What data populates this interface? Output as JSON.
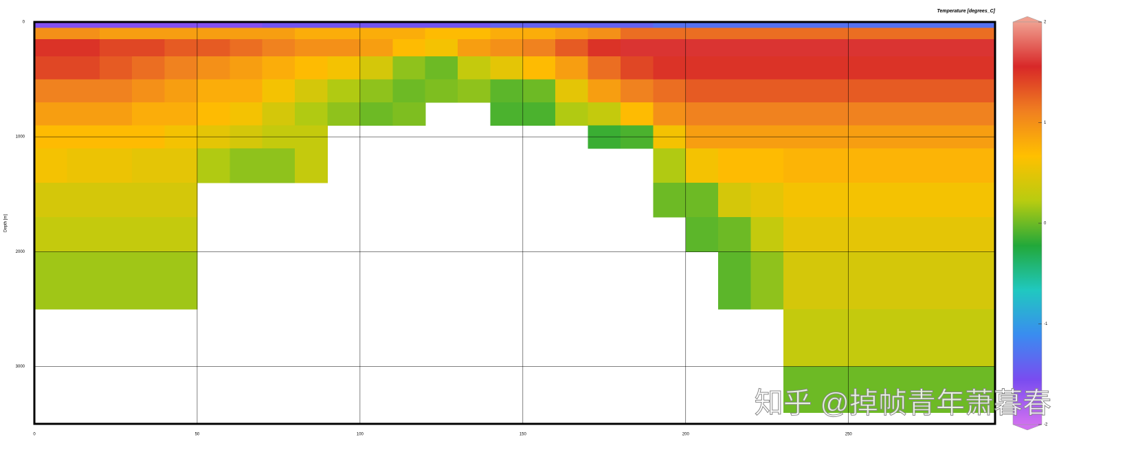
{
  "chart_data": {
    "type": "section",
    "colorbar_title": "Temperature [degrees_C]",
    "ylabel": "Depth [m]",
    "watermark": "知乎 @掉帧青年萧暮春",
    "xlim": [
      0,
      295
    ],
    "ylim": [
      3500,
      0
    ],
    "xticks": [
      0,
      50,
      100,
      150,
      200,
      250
    ],
    "yticks": [
      0,
      1000,
      2000,
      3000
    ],
    "grid": true,
    "x_edges": [
      0,
      10,
      20,
      30,
      40,
      50,
      60,
      70,
      80,
      90,
      100,
      110,
      120,
      130,
      140,
      150,
      160,
      170,
      180,
      190,
      200,
      210,
      220,
      230,
      240,
      250,
      260,
      270,
      280,
      290,
      295
    ],
    "depth_edges": [
      0,
      50,
      150,
      300,
      500,
      700,
      900,
      1100,
      1400,
      1700,
      2000,
      2500,
      3000,
      3400
    ],
    "values": [
      [
        -1.6,
        1.0,
        1.5,
        1.4,
        1.1,
        0.9,
        0.7,
        0.6,
        0.4,
        0.3,
        0.15,
        null,
        null
      ],
      [
        -1.6,
        1.0,
        1.5,
        1.4,
        1.1,
        0.9,
        0.7,
        0.55,
        0.4,
        0.3,
        0.15,
        null,
        null
      ],
      [
        -1.6,
        0.9,
        1.4,
        1.3,
        1.1,
        0.9,
        0.7,
        0.55,
        0.4,
        0.3,
        0.15,
        null,
        null
      ],
      [
        -1.6,
        0.9,
        1.4,
        1.2,
        1.0,
        0.8,
        0.7,
        0.5,
        0.4,
        0.3,
        0.15,
        null,
        null
      ],
      [
        -1.6,
        0.9,
        1.3,
        1.1,
        0.9,
        0.8,
        0.6,
        0.5,
        0.4,
        0.3,
        0.15,
        null,
        null
      ],
      [
        -1.6,
        0.9,
        1.3,
        1.0,
        0.8,
        0.7,
        0.5,
        0.2,
        null,
        null,
        null,
        null,
        null
      ],
      [
        -1.6,
        0.9,
        1.2,
        0.9,
        0.8,
        0.6,
        0.4,
        0.1,
        null,
        null,
        null,
        null,
        null
      ],
      [
        -1.5,
        0.9,
        1.1,
        0.8,
        0.6,
        0.4,
        0.3,
        0.1,
        null,
        null,
        null,
        null,
        null
      ],
      [
        -1.5,
        0.8,
        1.0,
        0.7,
        0.4,
        0.2,
        0.3,
        0.3,
        null,
        null,
        null,
        null,
        null
      ],
      [
        -1.5,
        0.8,
        1.0,
        0.6,
        0.2,
        0.1,
        null,
        null,
        null,
        null,
        null,
        null,
        null
      ],
      [
        -1.5,
        0.8,
        0.9,
        0.4,
        0.1,
        0.0,
        null,
        null,
        null,
        null,
        null,
        null,
        null
      ],
      [
        -1.5,
        0.8,
        0.7,
        0.1,
        0.0,
        0.05,
        null,
        null,
        null,
        null,
        null,
        null,
        null
      ],
      [
        -1.5,
        0.7,
        0.6,
        0.0,
        0.05,
        null,
        null,
        null,
        null,
        null,
        null,
        null,
        null
      ],
      [
        -1.5,
        0.7,
        0.9,
        0.3,
        0.1,
        null,
        null,
        null,
        null,
        null,
        null,
        null,
        null
      ],
      [
        -1.4,
        0.8,
        1.0,
        0.5,
        -0.05,
        -0.1,
        null,
        null,
        null,
        null,
        null,
        null,
        null
      ],
      [
        -1.4,
        0.8,
        1.1,
        0.7,
        0.0,
        -0.1,
        null,
        null,
        null,
        null,
        null,
        null,
        null
      ],
      [
        -1.4,
        0.9,
        1.3,
        0.9,
        0.5,
        0.2,
        null,
        null,
        null,
        null,
        null,
        null,
        null
      ],
      [
        -1.4,
        1.0,
        1.5,
        1.2,
        0.9,
        0.3,
        -0.15,
        null,
        null,
        null,
        null,
        null,
        null
      ],
      [
        -1.4,
        1.2,
        1.6,
        1.4,
        1.1,
        0.7,
        -0.1,
        null,
        null,
        null,
        null,
        null,
        null
      ],
      [
        -1.3,
        1.2,
        1.6,
        1.5,
        1.2,
        1.0,
        0.6,
        0.2,
        0.0,
        null,
        null,
        null,
        null
      ],
      [
        -1.3,
        1.2,
        1.6,
        1.5,
        1.3,
        1.1,
        0.9,
        0.6,
        0.0,
        -0.05,
        null,
        null,
        null
      ],
      [
        -1.3,
        1.2,
        1.6,
        1.5,
        1.3,
        1.1,
        0.9,
        0.7,
        0.4,
        0.0,
        -0.05,
        null,
        null
      ],
      [
        -1.3,
        1.2,
        1.6,
        1.5,
        1.3,
        1.1,
        0.9,
        0.7,
        0.5,
        0.3,
        0.1,
        null,
        null
      ],
      [
        -1.3,
        1.2,
        1.6,
        1.5,
        1.3,
        1.1,
        0.9,
        0.75,
        0.6,
        0.5,
        0.4,
        0.3,
        0.0
      ],
      [
        -1.3,
        1.2,
        1.6,
        1.5,
        1.3,
        1.1,
        0.9,
        0.75,
        0.6,
        0.5,
        0.4,
        0.3,
        0.0
      ],
      [
        -1.3,
        1.2,
        1.6,
        1.5,
        1.3,
        1.1,
        0.9,
        0.75,
        0.6,
        0.5,
        0.4,
        0.3,
        0.0
      ],
      [
        -1.3,
        1.2,
        1.6,
        1.5,
        1.3,
        1.1,
        0.9,
        0.75,
        0.6,
        0.5,
        0.4,
        0.3,
        0.0
      ],
      [
        -1.3,
        1.2,
        1.6,
        1.5,
        1.3,
        1.1,
        0.9,
        0.75,
        0.6,
        0.5,
        0.4,
        0.3,
        0.0
      ],
      [
        -1.3,
        1.2,
        1.6,
        1.5,
        1.3,
        1.1,
        0.9,
        0.75,
        0.6,
        0.5,
        0.4,
        0.3,
        0.0
      ],
      [
        -1.3,
        1.2,
        1.6,
        1.5,
        1.3,
        1.1,
        0.9,
        0.75,
        0.6,
        0.5,
        0.4,
        0.3,
        0.0
      ]
    ],
    "colorbar_lim": [
      -2,
      2
    ],
    "colorbar_ticks": [
      -2,
      -1,
      0,
      1,
      2
    ],
    "colors": [
      "#d070f0",
      "#7a4cf0",
      "#3a8cf0",
      "#20c8c0",
      "#22a83a",
      "#b8cc10",
      "#ffc000",
      "#f08020",
      "#d82828",
      "#f0a090"
    ]
  }
}
